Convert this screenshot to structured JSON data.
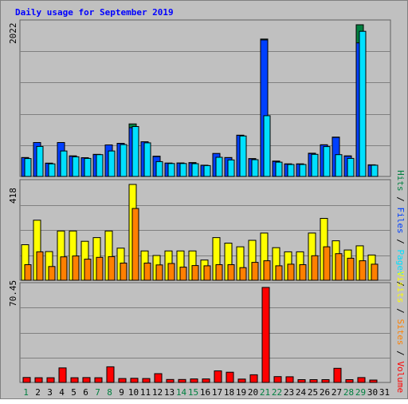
{
  "chart_data": {
    "type": "bar",
    "title": "Daily usage for September 2019",
    "days": [
      "1",
      "2",
      "3",
      "4",
      "5",
      "6",
      "7",
      "8",
      "9",
      "10",
      "11",
      "12",
      "13",
      "14",
      "15",
      "16",
      "17",
      "18",
      "19",
      "20",
      "21",
      "22",
      "23",
      "24",
      "25",
      "26",
      "27",
      "28",
      "29",
      "30",
      "31"
    ],
    "weekend_days": [
      1,
      7,
      8,
      14,
      15,
      21,
      22,
      28,
      29
    ],
    "colors": {
      "title": "#0000ff",
      "weekday_label": "#000000",
      "weekend_label": "#008040",
      "hits": "#008040",
      "files": "#0040ff",
      "pages": "#00e0ff",
      "visits": "#ffff00",
      "sites": "#ff8000",
      "volume": "#ff0000",
      "plot_bg": "#c0c0c0",
      "grid": "#808080"
    },
    "legend_right": {
      "top": [
        {
          "text": "Hits",
          "color": "#008040"
        },
        {
          "text": " / ",
          "color": "#000000"
        },
        {
          "text": "Files",
          "color": "#0040ff"
        },
        {
          "text": " / ",
          "color": "#000000"
        },
        {
          "text": "Pages",
          "color": "#00e0ff"
        },
        {
          "text": " / ",
          "color": "#000000"
        }
      ],
      "bottom": [
        {
          "text": "Visits",
          "color": "#ffff00"
        },
        {
          "text": " / ",
          "color": "#000000"
        },
        {
          "text": "Sites",
          "color": "#ff8000"
        },
        {
          "text": " / ",
          "color": "#000000"
        },
        {
          "text": "Volume",
          "color": "#ff0000"
        }
      ]
    },
    "panels": [
      {
        "name": "hits-files-pages",
        "ymax_label": "2022",
        "ymax": 2022,
        "series": [
          {
            "name": "Hits",
            "color": "#008040",
            "values": [
              252,
              452,
              178,
              452,
              275,
              250,
              295,
              420,
              442,
              700,
              462,
              270,
              178,
              180,
              185,
              150,
              305,
              252,
              550,
              238,
              1832,
              205,
              168,
              168,
              310,
              423,
              525,
              275,
              2022,
              155,
              0
            ]
          },
          {
            "name": "Files",
            "color": "#0040ff",
            "values": [
              250,
              452,
              175,
              452,
              270,
              248,
              292,
              420,
              440,
              650,
              462,
              265,
              178,
              178,
              180,
              148,
              305,
              250,
              548,
              235,
              1820,
              200,
              165,
              165,
              305,
              420,
              520,
              270,
              1780,
              150,
              0
            ]
          },
          {
            "name": "Pages",
            "color": "#00e0ff",
            "values": [
              238,
              400,
              168,
              340,
              262,
              240,
              290,
              340,
              425,
              665,
              448,
              198,
              172,
              172,
              170,
              145,
              255,
              220,
              540,
              223,
              810,
              190,
              160,
              160,
              295,
              398,
              290,
              240,
              1935,
              150,
              0
            ]
          }
        ]
      },
      {
        "name": "visits-sites",
        "ymax_label": "418",
        "ymax": 418,
        "series": [
          {
            "name": "Visits",
            "color": "#ffff00",
            "values": [
              155,
              262,
              125,
              215,
              215,
              170,
              186,
              215,
              140,
              418,
              128,
              108,
              128,
              128,
              128,
              88,
              186,
              162,
              146,
              174,
              206,
              142,
              124,
              124,
              206,
              270,
              172,
              132,
              150,
              110,
              0
            ]
          },
          {
            "name": "Sites",
            "color": "#ff8000",
            "values": [
              68,
              124,
              60,
              102,
              106,
              92,
              100,
              103,
              75,
              313,
              75,
              67,
              73,
              57,
              64,
              63,
              68,
              68,
              55,
              78,
              85,
              63,
              70,
              68,
              107,
              146,
              116,
              96,
              85,
              70,
              0
            ]
          }
        ]
      },
      {
        "name": "volume",
        "ymax_label": "70.45",
        "ymax": 70.45,
        "series": [
          {
            "name": "Volume",
            "color": "#ff0000",
            "values": [
              3.7,
              3.5,
              3.5,
              10.8,
              3.5,
              3.6,
              3.5,
              11.6,
              2.9,
              3.1,
              2.9,
              6.5,
              2.2,
              2.2,
              2.6,
              2.6,
              8.6,
              7.6,
              2.5,
              5.7,
              70.45,
              4.3,
              4.2,
              2.1,
              2.1,
              2.1,
              10.5,
              2.1,
              3.6,
              1.8,
              0
            ]
          }
        ]
      }
    ]
  }
}
